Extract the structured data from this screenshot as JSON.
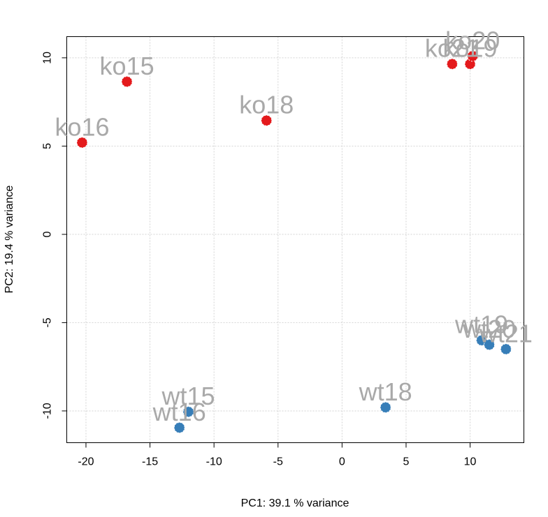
{
  "chart_data": {
    "type": "scatter",
    "title": "",
    "xlabel": "PC1: 39.1 % variance",
    "ylabel": "PC2: 19.4 % variance",
    "xlim": [
      -21.5,
      14.2
    ],
    "ylim": [
      -11.8,
      11.2
    ],
    "x_ticks": [
      -20,
      -15,
      -10,
      -5,
      0,
      5,
      10
    ],
    "y_ticks": [
      -10,
      -5,
      0,
      5,
      10
    ],
    "grid": true,
    "groups": [
      {
        "name": "ko",
        "color": "#e41a1c",
        "points": [
          {
            "label": "ko16",
            "x": -20.3,
            "y": 5.2
          },
          {
            "label": "ko15",
            "x": -16.8,
            "y": 8.65
          },
          {
            "label": "ko18",
            "x": -5.9,
            "y": 6.45
          },
          {
            "label": "ko21",
            "x": 8.6,
            "y": 9.65
          },
          {
            "label": "ko19",
            "x": 10.0,
            "y": 9.65
          },
          {
            "label": "ko20",
            "x": 10.2,
            "y": 10.1
          }
        ]
      },
      {
        "name": "wt",
        "color": "#377eb8",
        "points": [
          {
            "label": "wt16",
            "x": -12.7,
            "y": -10.95
          },
          {
            "label": "wt15",
            "x": -12.0,
            "y": -10.05
          },
          {
            "label": "wt18",
            "x": 3.4,
            "y": -9.8
          },
          {
            "label": "wt19",
            "x": 10.9,
            "y": -6.0
          },
          {
            "label": "wt20",
            "x": 11.5,
            "y": -6.25
          },
          {
            "label": "wt21",
            "x": 12.8,
            "y": -6.5
          }
        ]
      }
    ]
  }
}
